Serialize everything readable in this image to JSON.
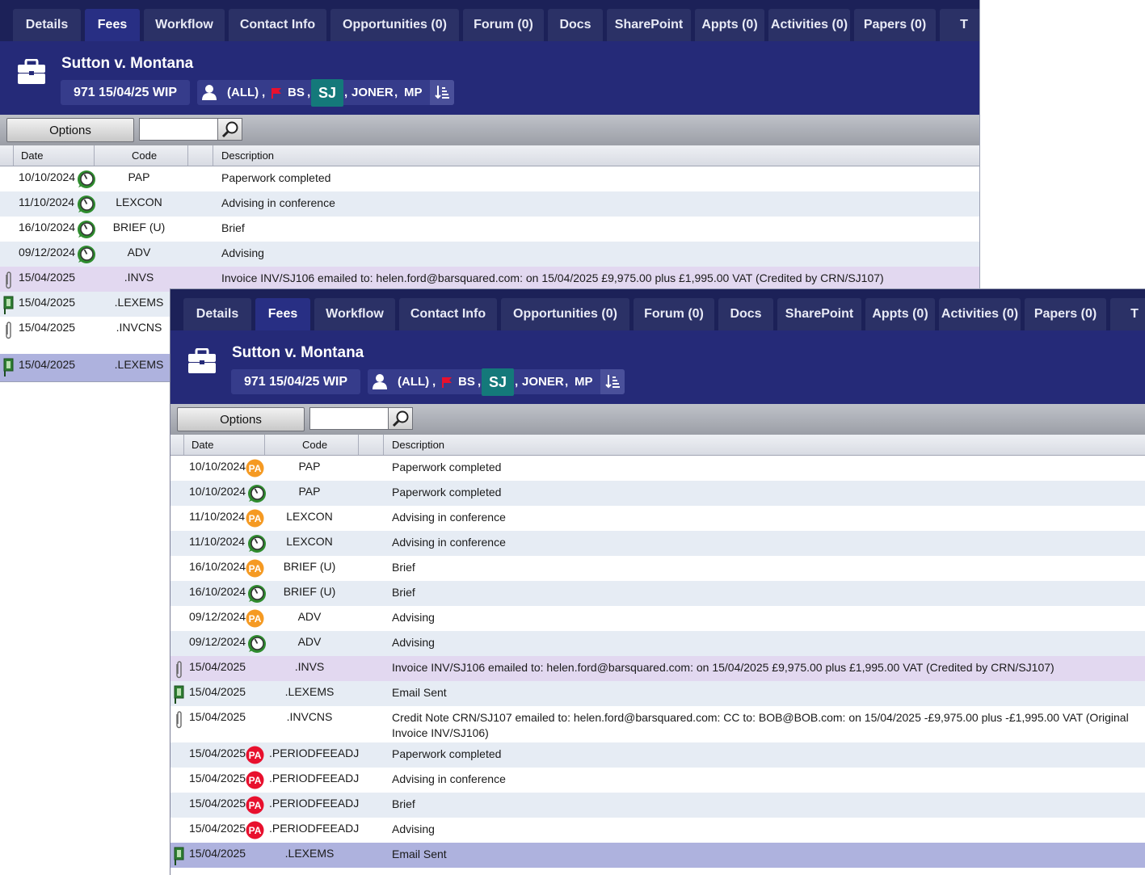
{
  "tabs": [
    "Details",
    "Fees",
    "Workflow",
    "Contact Info",
    "Opportunities (0)",
    "Forum (0)",
    "Docs",
    "SharePoint",
    "Appts (0)",
    "Activities (0)",
    "Papers (0)",
    "T"
  ],
  "active_tab": "Fees",
  "case": {
    "title": "Sutton v. Montana",
    "wip": "971 15/04/25 WIP",
    "people": {
      "all": "(ALL)",
      "comma": ",",
      "bs": "BS",
      "sj": "SJ",
      "joner": "JONER",
      "mp": "MP"
    }
  },
  "toolbar": {
    "options_label": "Options",
    "search_value": ""
  },
  "columns": {
    "date": "Date",
    "code": "Code",
    "description": "Description"
  },
  "window1": {
    "rows": [
      {
        "date": "10/10/2024",
        "icon": "timer",
        "code": "PAP",
        "description": "Paperwork completed"
      },
      {
        "date": "11/10/2024",
        "icon": "timer",
        "code": "LEXCON",
        "description": "Advising in conference"
      },
      {
        "date": "16/10/2024",
        "icon": "timer",
        "code": "BRIEF (U)",
        "description": "Brief"
      },
      {
        "date": "09/12/2024",
        "icon": "timer",
        "code": "ADV",
        "description": "Advising"
      },
      {
        "date": "15/04/2025",
        "icon": "paperclip",
        "code": ".INVS",
        "description": "Invoice INV/SJ106 emailed to: helen.ford@barsquared.com: on 15/04/2025 £9,975.00 plus £1,995.00 VAT (Credited by CRN/SJ107)"
      },
      {
        "date": "15/04/2025",
        "icon": "flag-pin",
        "code": ".LEXEMS",
        "description": ""
      },
      {
        "date": "15/04/2025",
        "icon": "paperclip",
        "code": ".INVCNS",
        "description": ""
      },
      {
        "date": "15/04/2025",
        "icon": "flag-pin",
        "code": ".LEXEMS",
        "description": ""
      }
    ]
  },
  "window2": {
    "rows": [
      {
        "date": "10/10/2024",
        "icon": "pa-orange",
        "code": "PAP",
        "description": "Paperwork completed"
      },
      {
        "date": "10/10/2024",
        "icon": "timer",
        "code": "PAP",
        "description": "Paperwork completed"
      },
      {
        "date": "11/10/2024",
        "icon": "pa-orange",
        "code": "LEXCON",
        "description": "Advising in conference"
      },
      {
        "date": "11/10/2024",
        "icon": "timer",
        "code": "LEXCON",
        "description": "Advising in conference"
      },
      {
        "date": "16/10/2024",
        "icon": "pa-orange",
        "code": "BRIEF (U)",
        "description": "Brief"
      },
      {
        "date": "16/10/2024",
        "icon": "timer",
        "code": "BRIEF (U)",
        "description": "Brief"
      },
      {
        "date": "09/12/2024",
        "icon": "pa-orange",
        "code": "ADV",
        "description": "Advising"
      },
      {
        "date": "09/12/2024",
        "icon": "timer",
        "code": "ADV",
        "description": "Advising"
      },
      {
        "date": "15/04/2025",
        "icon": "paperclip",
        "code": ".INVS",
        "description": "Invoice INV/SJ106 emailed to: helen.ford@barsquared.com: on 15/04/2025 £9,975.00 plus £1,995.00 VAT (Credited by CRN/SJ107)"
      },
      {
        "date": "15/04/2025",
        "icon": "flag-pin",
        "code": ".LEXEMS",
        "description": "Email Sent"
      },
      {
        "date": "15/04/2025",
        "icon": "paperclip",
        "code": ".INVCNS",
        "description": "Credit Note CRN/SJ107 emailed to: helen.ford@barsquared.com: CC to: BOB@BOB.com: on 15/04/2025 -£9,975.00 plus -£1,995.00 VAT (Original Invoice INV/SJ106)"
      },
      {
        "date": "15/04/2025",
        "icon": "pa-red",
        "code": ".PERIODFEEADJ",
        "description": "Paperwork completed"
      },
      {
        "date": "15/04/2025",
        "icon": "pa-red",
        "code": ".PERIODFEEADJ",
        "description": "Advising in conference"
      },
      {
        "date": "15/04/2025",
        "icon": "pa-red",
        "code": ".PERIODFEEADJ",
        "description": "Brief"
      },
      {
        "date": "15/04/2025",
        "icon": "pa-red",
        "code": ".PERIODFEEADJ",
        "description": "Advising"
      },
      {
        "date": "15/04/2025",
        "icon": "flag-pin",
        "code": ".LEXEMS",
        "description": "Email Sent"
      }
    ]
  },
  "badges": {
    "pa": "PA"
  },
  "colors": {
    "tabbar": "#1c2158",
    "header": "#252a78",
    "sj_badge": "#14797a",
    "pa_orange": "#f59a23",
    "pa_red": "#e8102e",
    "timer_green": "#2e8b2e",
    "row_alt": "#e6ecf4",
    "row_invoice": "#e2d8f0",
    "row_selected": "#aeb2de"
  }
}
